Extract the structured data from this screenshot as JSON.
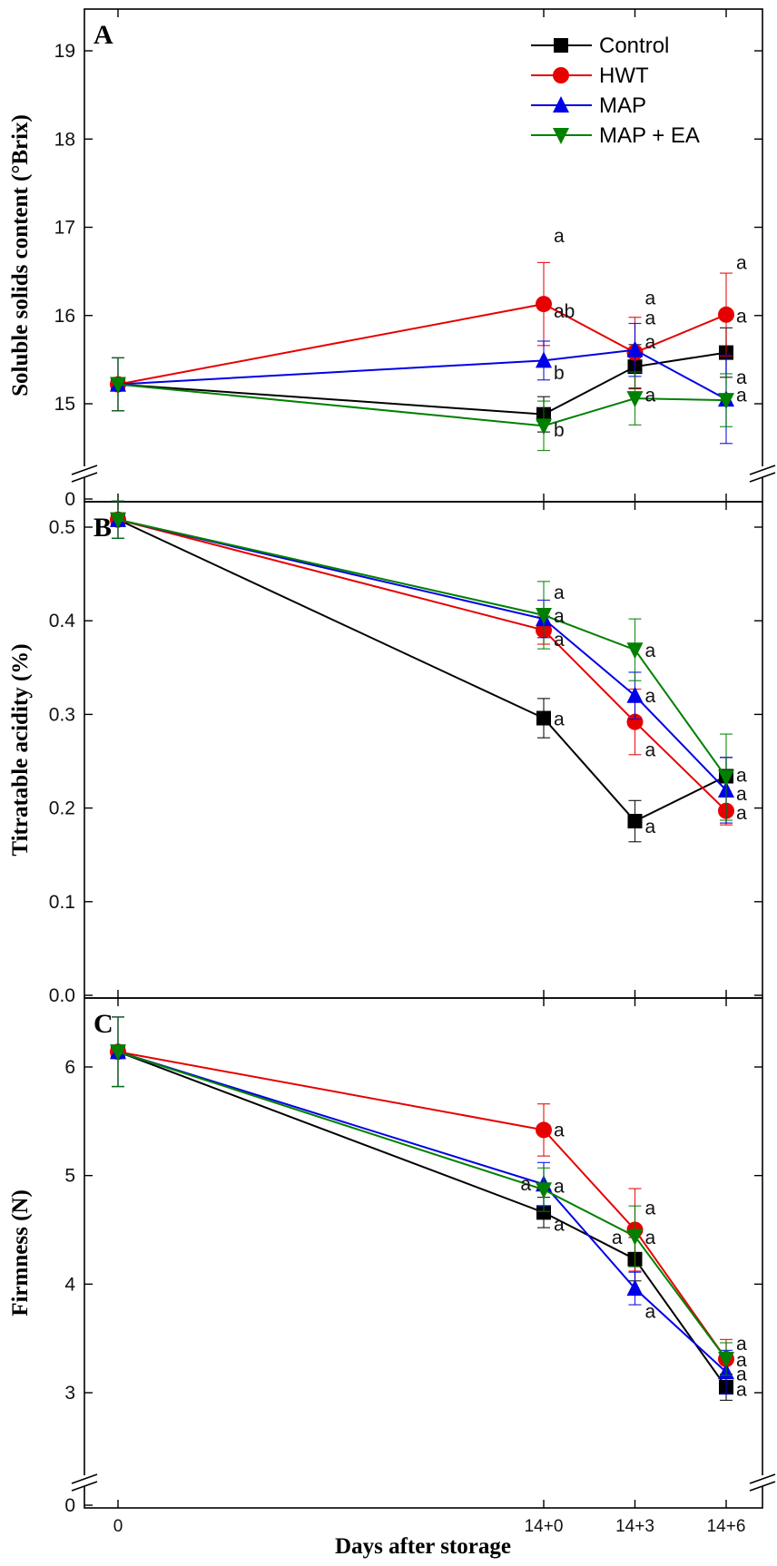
{
  "chart_data": [
    {
      "panel": "A",
      "type": "line",
      "ylabel": "Soluble solids content (°Brix)",
      "xlabel": "",
      "categories": [
        "0",
        "14+0",
        "14+3",
        "14+6"
      ],
      "x_positions": [
        0,
        14,
        17,
        20
      ],
      "ylim": [
        14.5,
        19.5
      ],
      "yticks": [
        15,
        16,
        17,
        18,
        19
      ],
      "axis_break": true,
      "baseline_tick": "0",
      "series": [
        {
          "name": "Control",
          "color": "#000000",
          "marker": "square",
          "values": [
            15.22,
            14.88,
            15.42,
            15.58
          ],
          "errors": [
            0.3,
            0.2,
            0.25,
            0.28
          ]
        },
        {
          "name": "HWT",
          "color": "#e60000",
          "marker": "circle",
          "values": [
            15.22,
            16.13,
            15.58,
            16.01
          ],
          "errors": [
            0.3,
            0.47,
            0.4,
            0.47
          ]
        },
        {
          "name": "MAP",
          "color": "#0000e6",
          "marker": "triangle-up",
          "values": [
            15.22,
            15.49,
            15.61,
            15.05
          ],
          "errors": [
            0.3,
            0.22,
            0.3,
            0.5
          ]
        },
        {
          "name": "MAP + EA",
          "color": "#008000",
          "marker": "triangle-down",
          "values": [
            15.22,
            14.75,
            15.06,
            15.04
          ],
          "errors": [
            0.3,
            0.28,
            0.3,
            0.3
          ]
        }
      ],
      "annotations": [
        {
          "x": 14,
          "y": 16.9,
          "text": "a"
        },
        {
          "x": 14,
          "y": 16.05,
          "text": "ab"
        },
        {
          "x": 14,
          "y": 15.35,
          "text": "b"
        },
        {
          "x": 14,
          "y": 14.7,
          "text": "b"
        },
        {
          "x": 17,
          "y": 16.2,
          "text": "a"
        },
        {
          "x": 17,
          "y": 15.97,
          "text": "a"
        },
        {
          "x": 17,
          "y": 15.7,
          "text": "a"
        },
        {
          "x": 17,
          "y": 15.1,
          "text": "a"
        },
        {
          "x": 20,
          "y": 16.6,
          "text": "a"
        },
        {
          "x": 20,
          "y": 15.99,
          "text": "a"
        },
        {
          "x": 20,
          "y": 15.3,
          "text": "a"
        },
        {
          "x": 20,
          "y": 15.1,
          "text": "a"
        }
      ],
      "legend": {
        "placement": "top-right",
        "entries": [
          "Control",
          "HWT",
          "MAP",
          "MAP + EA"
        ]
      }
    },
    {
      "panel": "B",
      "type": "line",
      "ylabel": "Titratable acidity (%)",
      "xlabel": "",
      "categories": [
        "0",
        "14+0",
        "14+3",
        "14+6"
      ],
      "x_positions": [
        0,
        14,
        17,
        20
      ],
      "ylim": [
        0.0,
        0.6
      ],
      "yticks": [
        0.0,
        0.1,
        0.2,
        0.3,
        0.4,
        0.5
      ],
      "series": [
        {
          "name": "Control",
          "color": "#000000",
          "marker": "square",
          "values": [
            0.508,
            0.296,
            0.186,
            0.234
          ],
          "errors": [
            0.02,
            0.021,
            0.022,
            0.02
          ]
        },
        {
          "name": "HWT",
          "color": "#e60000",
          "marker": "circle",
          "values": [
            0.508,
            0.39,
            0.292,
            0.197
          ],
          "errors": [
            0.02,
            0.015,
            0.035,
            0.015
          ]
        },
        {
          "name": "MAP",
          "color": "#0000e6",
          "marker": "triangle-up",
          "values": [
            0.508,
            0.402,
            0.32,
            0.219
          ],
          "errors": [
            0.02,
            0.02,
            0.025,
            0.035
          ]
        },
        {
          "name": "MAP + EA",
          "color": "#008000",
          "marker": "triangle-down",
          "values": [
            0.508,
            0.406,
            0.369,
            0.233
          ],
          "errors": [
            0.02,
            0.036,
            0.033,
            0.046
          ]
        }
      ],
      "annotations": [
        {
          "x": 14,
          "y": 0.43,
          "text": "a"
        },
        {
          "x": 14,
          "y": 0.405,
          "text": "a"
        },
        {
          "x": 14,
          "y": 0.38,
          "text": "a"
        },
        {
          "x": 14,
          "y": 0.295,
          "text": "a"
        },
        {
          "x": 17,
          "y": 0.368,
          "text": "a"
        },
        {
          "x": 17,
          "y": 0.32,
          "text": "a"
        },
        {
          "x": 17,
          "y": 0.262,
          "text": "a"
        },
        {
          "x": 17,
          "y": 0.18,
          "text": "a"
        },
        {
          "x": 20,
          "y": 0.235,
          "text": "a"
        },
        {
          "x": 20,
          "y": 0.215,
          "text": "a"
        },
        {
          "x": 20,
          "y": 0.195,
          "text": "a"
        }
      ]
    },
    {
      "panel": "C",
      "type": "line",
      "ylabel": "Firmness (N)",
      "xlabel": "Days after storage",
      "categories": [
        "0",
        "14+0",
        "14+3",
        "14+6"
      ],
      "x_positions": [
        0,
        14,
        17,
        20
      ],
      "ylim": [
        2.3,
        6.75
      ],
      "yticks": [
        3,
        4,
        5,
        6
      ],
      "axis_break": true,
      "baseline_tick": "0",
      "series": [
        {
          "name": "Control",
          "color": "#000000",
          "marker": "square",
          "values": [
            6.14,
            4.66,
            4.23,
            3.05
          ],
          "errors": [
            0.32,
            0.14,
            0.2,
            0.12
          ]
        },
        {
          "name": "HWT",
          "color": "#e60000",
          "marker": "circle",
          "values": [
            6.14,
            5.42,
            4.5,
            3.31
          ],
          "errors": [
            0.32,
            0.24,
            0.38,
            0.18
          ]
        },
        {
          "name": "MAP",
          "color": "#0000e6",
          "marker": "triangle-up",
          "values": [
            6.14,
            4.92,
            3.96,
            3.19
          ],
          "errors": [
            0.32,
            0.2,
            0.15,
            0.2
          ]
        },
        {
          "name": "MAP + EA",
          "color": "#008000",
          "marker": "triangle-down",
          "values": [
            6.14,
            4.87,
            4.44,
            3.31
          ],
          "errors": [
            0.32,
            0.2,
            0.28,
            0.15
          ]
        }
      ],
      "annotations": [
        {
          "x": 14,
          "y": 5.42,
          "text": "a"
        },
        {
          "x": 14,
          "y": 4.9,
          "text": "a"
        },
        {
          "x": 14,
          "y": 4.55,
          "text": "a"
        },
        {
          "x": 14,
          "y": 4.92,
          "text": "a",
          "side": "left"
        },
        {
          "x": 17,
          "y": 4.7,
          "text": "a"
        },
        {
          "x": 17,
          "y": 4.43,
          "text": "a"
        },
        {
          "x": 17,
          "y": 4.43,
          "text": "a",
          "side": "left"
        },
        {
          "x": 17,
          "y": 3.75,
          "text": "a"
        },
        {
          "x": 20,
          "y": 3.45,
          "text": "a"
        },
        {
          "x": 20,
          "y": 3.3,
          "text": "a"
        },
        {
          "x": 20,
          "y": 3.17,
          "text": "a"
        },
        {
          "x": 20,
          "y": 3.03,
          "text": "a"
        }
      ]
    }
  ]
}
